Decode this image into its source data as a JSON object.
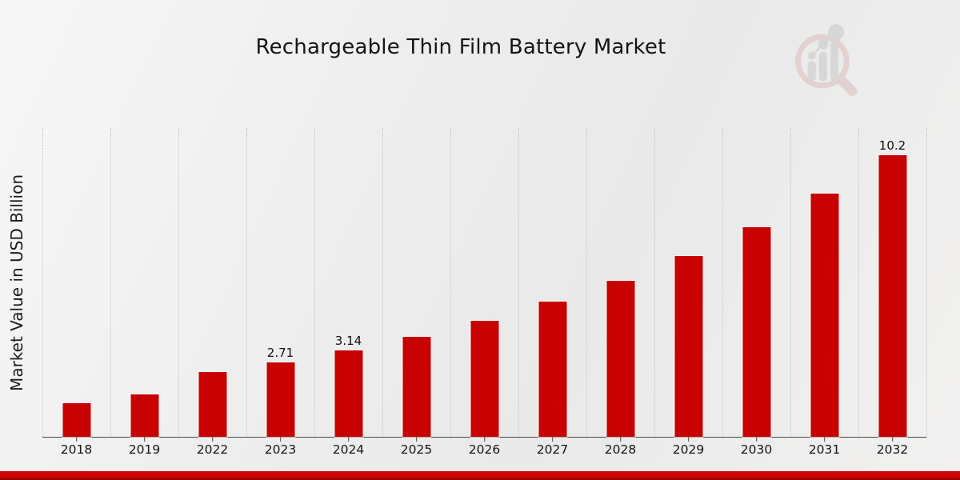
{
  "title": "Rechargeable Thin Film Battery Market",
  "branding": {
    "logo_name": "market-research-future-logo",
    "accent_strip_color_top": "#cf0505",
    "accent_strip_color_bottom": "#8e0101"
  },
  "chart_data": {
    "type": "bar",
    "title": "Rechargeable Thin Film Battery Market",
    "xlabel": "",
    "ylabel": "Market Value in USD Billion",
    "categories": [
      "2018",
      "2019",
      "2022",
      "2023",
      "2024",
      "2025",
      "2026",
      "2027",
      "2028",
      "2029",
      "2030",
      "2031",
      "2032"
    ],
    "values": [
      1.22,
      1.54,
      2.34,
      2.71,
      3.14,
      3.64,
      4.22,
      4.89,
      5.67,
      6.56,
      7.61,
      8.81,
      10.2
    ],
    "point_labels": [
      null,
      null,
      null,
      "2.71",
      "3.14",
      null,
      null,
      null,
      null,
      null,
      null,
      null,
      "10.2"
    ],
    "ylim": [
      0,
      11.2
    ],
    "bar_color": "#c80202",
    "grid": "vertical-dotted",
    "legend_position": "none"
  }
}
